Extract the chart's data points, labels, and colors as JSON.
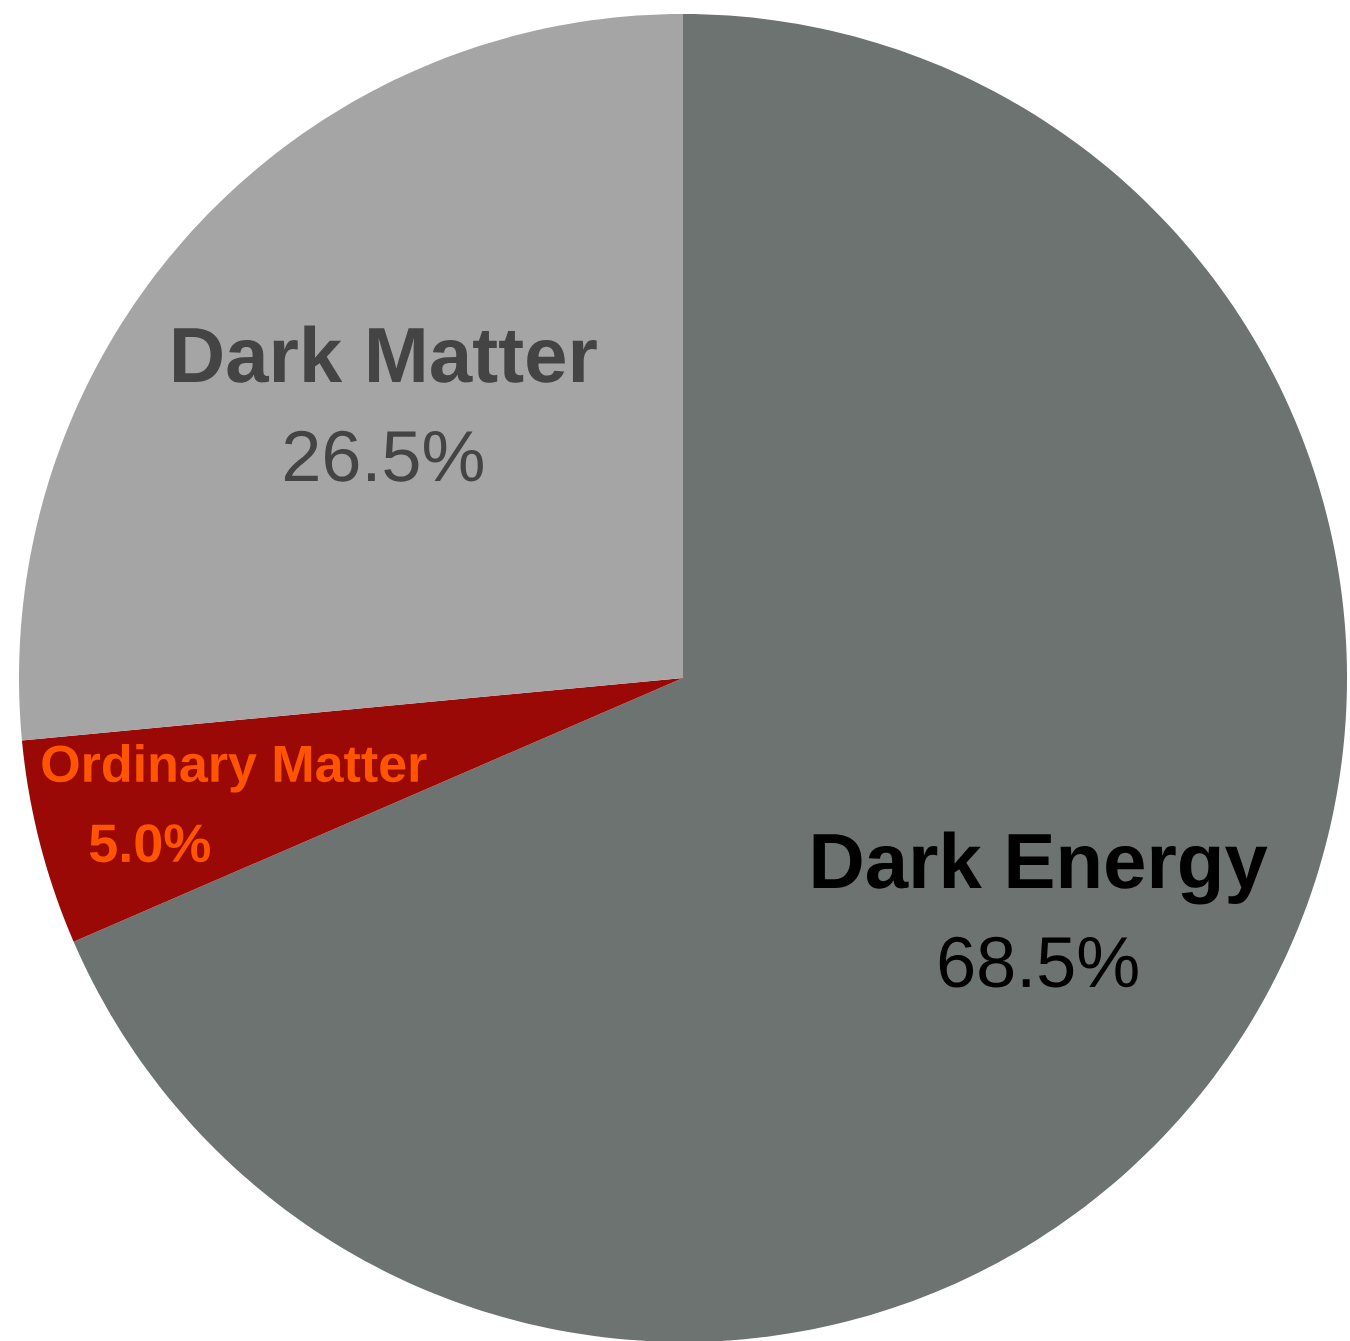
{
  "chart_data": {
    "type": "pie",
    "categories": [
      "Dark Energy",
      "Ordinary Matter",
      "Dark Matter"
    ],
    "values": [
      68.5,
      5.0,
      26.5
    ],
    "colors": [
      "#6d7370",
      "#9a0905",
      "#a5a5a5"
    ],
    "value_labels": [
      "68.5%",
      "5.0%",
      "26.5%"
    ]
  }
}
